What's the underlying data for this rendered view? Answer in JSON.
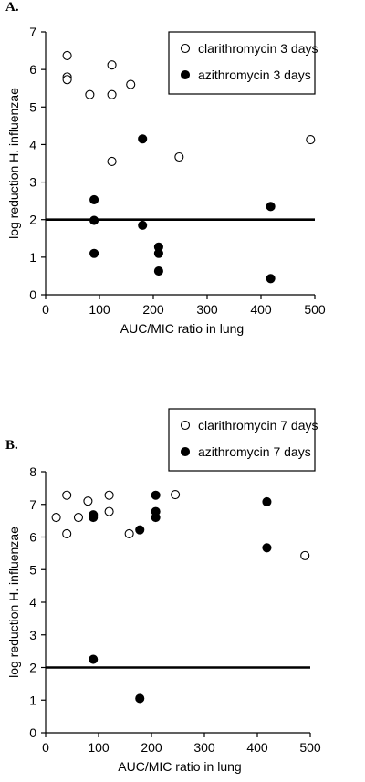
{
  "chart_data": [
    {
      "type": "scatter",
      "panel_label": "A.",
      "title": "",
      "xlabel": "AUC/MIC ratio in lung",
      "ylabel": "log reduction H. influenzae",
      "xlim": [
        0,
        500
      ],
      "ylim": [
        0,
        7
      ],
      "xticks": [
        0,
        100,
        200,
        300,
        400,
        500
      ],
      "yticks": [
        0,
        1,
        2,
        3,
        4,
        5,
        6,
        7
      ],
      "reference_line": {
        "y": 2
      },
      "legend_position": "top-right",
      "series": [
        {
          "name": "clarithromycin 3 days",
          "marker": "open-circle",
          "points": [
            {
              "x": 40,
              "y": 6.37
            },
            {
              "x": 40,
              "y": 5.8
            },
            {
              "x": 40,
              "y": 5.73
            },
            {
              "x": 82,
              "y": 5.33
            },
            {
              "x": 123,
              "y": 6.12
            },
            {
              "x": 123,
              "y": 5.33
            },
            {
              "x": 123,
              "y": 3.55
            },
            {
              "x": 158,
              "y": 5.6
            },
            {
              "x": 248,
              "y": 3.67
            },
            {
              "x": 492,
              "y": 4.13
            }
          ]
        },
        {
          "name": "azithromycin 3 days",
          "marker": "filled-circle",
          "points": [
            {
              "x": 90,
              "y": 2.53
            },
            {
              "x": 90,
              "y": 1.98
            },
            {
              "x": 90,
              "y": 1.1
            },
            {
              "x": 180,
              "y": 4.15
            },
            {
              "x": 180,
              "y": 1.85
            },
            {
              "x": 210,
              "y": 1.27
            },
            {
              "x": 210,
              "y": 1.1
            },
            {
              "x": 210,
              "y": 0.63
            },
            {
              "x": 418,
              "y": 2.35
            },
            {
              "x": 418,
              "y": 0.43
            }
          ]
        }
      ]
    },
    {
      "type": "scatter",
      "panel_label": "B.",
      "title": "",
      "xlabel": "AUC/MIC ratio in lung",
      "ylabel": "log reduction H. influenzae",
      "xlim": [
        0,
        500
      ],
      "ylim": [
        0,
        8
      ],
      "xticks": [
        0,
        100,
        200,
        300,
        400,
        500
      ],
      "yticks": [
        0,
        1,
        2,
        3,
        4,
        5,
        6,
        7,
        8
      ],
      "reference_line": {
        "y": 2
      },
      "legend_position": "top-right",
      "series": [
        {
          "name": "clarithromycin 7 days",
          "marker": "open-circle",
          "points": [
            {
              "x": 20,
              "y": 6.6
            },
            {
              "x": 40,
              "y": 7.28
            },
            {
              "x": 40,
              "y": 6.1
            },
            {
              "x": 62,
              "y": 6.6
            },
            {
              "x": 80,
              "y": 7.1
            },
            {
              "x": 120,
              "y": 7.28
            },
            {
              "x": 120,
              "y": 6.78
            },
            {
              "x": 158,
              "y": 6.1
            },
            {
              "x": 245,
              "y": 7.3
            },
            {
              "x": 490,
              "y": 5.43
            }
          ]
        },
        {
          "name": "azithromycin 7 days",
          "marker": "filled-circle",
          "points": [
            {
              "x": 90,
              "y": 6.68
            },
            {
              "x": 90,
              "y": 6.6
            },
            {
              "x": 90,
              "y": 2.25
            },
            {
              "x": 178,
              "y": 6.22
            },
            {
              "x": 178,
              "y": 1.05
            },
            {
              "x": 208,
              "y": 7.28
            },
            {
              "x": 208,
              "y": 6.78
            },
            {
              "x": 208,
              "y": 6.6
            },
            {
              "x": 418,
              "y": 7.08
            },
            {
              "x": 418,
              "y": 5.67
            }
          ]
        }
      ]
    }
  ]
}
